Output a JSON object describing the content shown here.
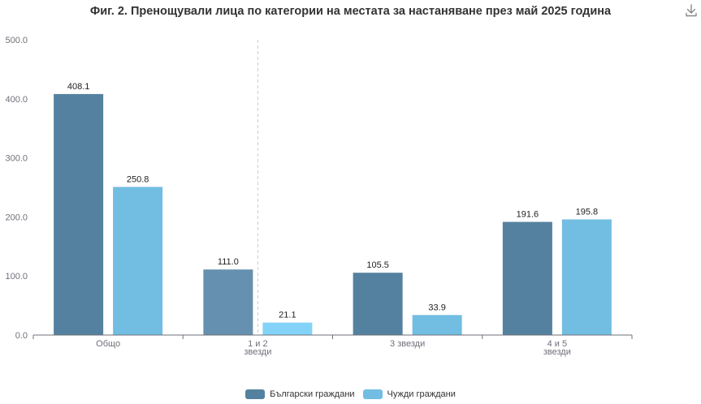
{
  "toolbar": {
    "download_icon": "download-icon"
  },
  "chart_data": {
    "type": "bar",
    "title": "Фиг. 2. Пренощували лица по категории на местата за настаняване през май 2025 година",
    "categories": [
      [
        "Общо"
      ],
      [
        "1 и 2",
        "звезди"
      ],
      [
        "3 звезди"
      ],
      [
        "4 и 5",
        "звезди"
      ]
    ],
    "series": [
      {
        "name": "Български граждани",
        "color": "#54819f",
        "values": [
          408.1,
          111.0,
          105.5,
          191.6
        ]
      },
      {
        "name": "Чужди граждани",
        "color": "#72bde2",
        "values": [
          250.8,
          21.1,
          33.9,
          195.8
        ]
      }
    ],
    "highlight": {
      "category_index": 1,
      "series_colors": [
        "#6690b0",
        "#83d3f8"
      ]
    },
    "y_ticks": [
      "0.0",
      "100.0",
      "200.0",
      "300.0",
      "400.0",
      "500.0"
    ],
    "ylim": [
      0,
      500
    ],
    "grid": false,
    "legend_position": "bottom"
  }
}
